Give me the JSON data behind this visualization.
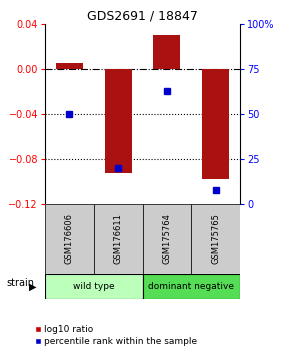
{
  "title": "GDS2691 / 18847",
  "samples": [
    "GSM176606",
    "GSM176611",
    "GSM175764",
    "GSM175765"
  ],
  "log10_ratios": [
    0.005,
    -0.092,
    0.03,
    -0.098
  ],
  "percentile_ranks": [
    50,
    20,
    63,
    8
  ],
  "groups": [
    {
      "label": "wild type",
      "samples": [
        0,
        1
      ],
      "color": "#bbffbb"
    },
    {
      "label": "dominant negative",
      "samples": [
        2,
        3
      ],
      "color": "#55dd55"
    }
  ],
  "ylim_left": [
    -0.12,
    0.04
  ],
  "ylim_right": [
    0,
    100
  ],
  "left_ticks": [
    0.04,
    0.0,
    -0.04,
    -0.08,
    -0.12
  ],
  "right_ticks": [
    100,
    75,
    50,
    25,
    0
  ],
  "bar_color": "#aa1111",
  "dot_color": "#0000cc",
  "dotted_lines": [
    -0.04,
    -0.08
  ],
  "background_color": "#ffffff",
  "bar_width": 0.55,
  "strain_label": "strain",
  "legend_bar_label": "log10 ratio",
  "legend_dot_label": "percentile rank within the sample"
}
